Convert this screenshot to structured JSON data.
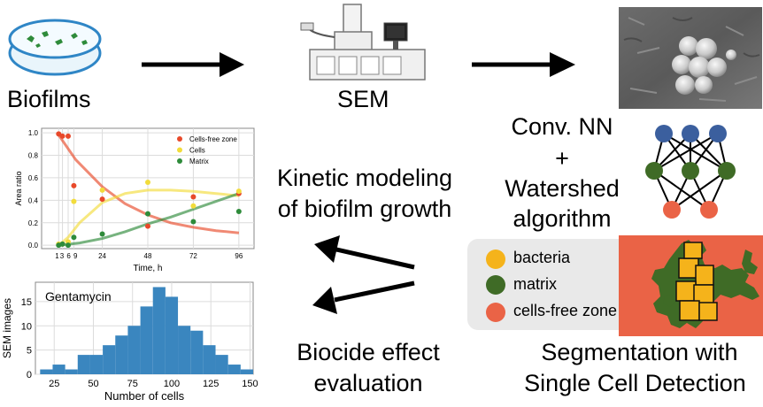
{
  "labels": {
    "biofilms": "Biofilms",
    "sem": "SEM",
    "conv_nn": "Conv. NN",
    "plus": "+",
    "watershed": "Watershed",
    "algorithm": "algorithm",
    "kinetic_line1": "Kinetic modeling",
    "kinetic_line2": "of biofilm growth",
    "biocide_line1": "Biocide effect",
    "biocide_line2": "evaluation",
    "segmentation_line1": "Segmentation with",
    "segmentation_line2": "Single Cell Detection"
  },
  "segmentation_legend": [
    {
      "label": "bacteria",
      "color": "#f5b31b"
    },
    {
      "label": "matrix",
      "color": "#3f6b26"
    },
    {
      "label": "cells-free zone",
      "color": "#ea6346"
    }
  ],
  "colors": {
    "cells_free_zone": "#e8492a",
    "cells": "#f2dc3b",
    "matrix": "#2e8b3a",
    "histogram_bar": "#3a86bf",
    "segmentation_bg": "#ea6346",
    "nn_top": "#3b5f9e",
    "nn_mid": "#3f6b26",
    "nn_bottom": "#ea6346"
  },
  "chart_data": [
    {
      "type": "scatter",
      "xlabel": "Time, h",
      "ylabel": "Area ratio",
      "xticks": [
        1,
        3,
        6,
        9,
        24,
        48,
        72,
        96
      ],
      "xtick_labels": [
        "1",
        "3",
        "6",
        "9",
        "24",
        "48",
        "72",
        "96"
      ],
      "yticks": [
        0.0,
        0.2,
        0.4,
        0.6,
        0.8,
        1.0
      ],
      "ytick_labels": [
        "0.0",
        "0.2",
        "0.4",
        "0.6",
        "0.8",
        "1.0"
      ],
      "xlim": [
        -8,
        104
      ],
      "ylim": [
        -0.03,
        1.04
      ],
      "grid": true,
      "legend_position": "top-right",
      "series": [
        {
          "name": "Cells-free zone",
          "color": "#e8492a",
          "points": [
            [
              1,
              0.99
            ],
            [
              3,
              0.97
            ],
            [
              6,
              0.97
            ],
            [
              9,
              0.53
            ],
            [
              24,
              0.41
            ],
            [
              48,
              0.17
            ],
            [
              72,
              0.43
            ],
            [
              96,
              0.46
            ]
          ],
          "fit": [
            [
              1,
              0.98
            ],
            [
              10,
              0.76
            ],
            [
              24,
              0.52
            ],
            [
              36,
              0.37
            ],
            [
              48,
              0.27
            ],
            [
              60,
              0.2
            ],
            [
              72,
              0.16
            ],
            [
              84,
              0.13
            ],
            [
              96,
              0.11
            ]
          ]
        },
        {
          "name": "Cells",
          "color": "#f2dc3b",
          "points": [
            [
              1,
              0.01
            ],
            [
              3,
              0.01
            ],
            [
              6,
              0.03
            ],
            [
              9,
              0.39
            ],
            [
              24,
              0.49
            ],
            [
              48,
              0.56
            ],
            [
              72,
              0.35
            ],
            [
              96,
              0.48
            ]
          ],
          "fit": [
            [
              1,
              0.0
            ],
            [
              6,
              0.07
            ],
            [
              12,
              0.2
            ],
            [
              24,
              0.38
            ],
            [
              36,
              0.46
            ],
            [
              48,
              0.49
            ],
            [
              60,
              0.49
            ],
            [
              72,
              0.48
            ],
            [
              84,
              0.46
            ],
            [
              96,
              0.44
            ]
          ]
        },
        {
          "name": "Matrix",
          "color": "#2e8b3a",
          "points": [
            [
              1,
              0.0
            ],
            [
              3,
              0.01
            ],
            [
              6,
              0.0
            ],
            [
              9,
              0.07
            ],
            [
              24,
              0.1
            ],
            [
              48,
              0.28
            ],
            [
              72,
              0.21
            ],
            [
              96,
              0.3
            ]
          ],
          "fit": [
            [
              1,
              0.0
            ],
            [
              12,
              0.02
            ],
            [
              24,
              0.06
            ],
            [
              36,
              0.12
            ],
            [
              48,
              0.19
            ],
            [
              60,
              0.25
            ],
            [
              72,
              0.32
            ],
            [
              84,
              0.39
            ],
            [
              96,
              0.46
            ]
          ]
        }
      ]
    },
    {
      "type": "bar",
      "title": "Gentamycin",
      "xlabel": "Number of cells",
      "ylabel": "SEM images",
      "xticks": [
        25,
        50,
        75,
        100,
        125,
        150
      ],
      "yticks": [
        0,
        5,
        10,
        15
      ],
      "xlim": [
        13,
        152
      ],
      "ylim": [
        0,
        19
      ],
      "grid": true,
      "bin_width": 8,
      "bin_starts": [
        16,
        24,
        32,
        40,
        48,
        56,
        64,
        72,
        80,
        88,
        96,
        104,
        112,
        120,
        128,
        136,
        144
      ],
      "values": [
        1,
        2,
        1,
        4,
        4,
        6,
        8,
        10,
        14,
        18,
        16,
        10,
        9,
        6,
        4,
        2,
        1
      ]
    }
  ]
}
